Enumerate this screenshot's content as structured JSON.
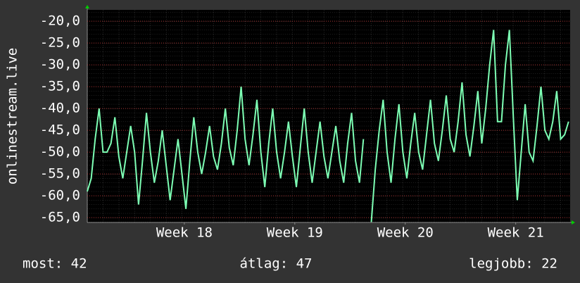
{
  "chart_data": {
    "type": "line",
    "y_label": "onlinestream.live",
    "x": [
      0,
      0.25,
      0.5,
      0.75,
      1,
      1.25,
      1.5,
      1.75,
      2,
      2.25,
      2.5,
      2.75,
      3,
      3.25,
      3.5,
      3.75,
      4,
      4.25,
      4.5,
      4.75,
      5,
      5.25,
      5.5,
      5.75,
      6,
      6.25,
      6.5,
      6.75,
      7,
      7.25,
      7.5,
      7.75,
      8,
      8.25,
      8.5,
      8.75,
      9,
      9.25,
      9.5,
      9.75,
      10,
      10.25,
      10.5,
      10.75,
      11,
      11.25,
      11.5,
      11.75,
      12,
      12.25,
      12.5,
      12.75,
      13,
      13.25,
      13.5,
      13.75,
      14,
      14.25,
      14.5,
      14.75,
      15,
      15.25,
      15.5,
      15.75,
      16,
      16.25,
      16.5,
      16.75,
      17,
      17.25,
      17.5,
      17.75,
      18,
      18.25,
      18.5,
      18.75,
      19,
      19.25,
      19.5,
      19.75,
      20,
      20.25,
      20.5,
      20.75,
      21,
      21.25,
      21.5,
      21.75,
      22,
      22.25,
      22.5,
      22.75,
      23,
      23.25,
      23.5,
      23.75,
      24,
      24.25,
      24.5,
      24.75,
      25,
      25.25,
      25.5,
      25.75,
      26,
      26.25,
      26.5,
      26.75,
      27,
      27.25,
      27.5,
      27.75,
      28,
      28.25,
      28.5,
      28.75,
      29,
      29.25,
      29.5,
      29.75,
      30,
      30.25,
      30.5
    ],
    "series": [
      {
        "color": "#7dffb4",
        "values": [
          -59,
          -56,
          -47,
          -40,
          -50,
          -50,
          -48,
          -42,
          -51,
          -56,
          -50,
          -44,
          -50,
          -62,
          -52,
          -41,
          -50,
          -57,
          -52,
          -45,
          -53,
          -61,
          -54,
          -47,
          -55,
          -63,
          -52,
          -42,
          -50,
          -55,
          -50,
          -44,
          -51,
          -54,
          -48,
          -40,
          -49,
          -53,
          -45,
          -35,
          -47,
          -53,
          -46,
          -38,
          -50,
          -58,
          -48,
          -40,
          -50,
          -56,
          -50,
          -43,
          -51,
          -58,
          -49,
          -40,
          -50,
          -57,
          -50,
          -43,
          -51,
          -56,
          -50,
          -44,
          -52,
          -57,
          -48,
          -41,
          -52,
          -57,
          -47,
          null,
          -66,
          -54,
          -45,
          -38,
          -50,
          -57,
          -47,
          -39,
          -50,
          -56,
          -48,
          -41,
          -50,
          -54,
          -46,
          -38,
          -48,
          -52,
          -45,
          -37,
          -47,
          -50,
          -43,
          -34,
          -46,
          -51,
          -44,
          -36,
          -48,
          -40,
          -30,
          -22,
          -43,
          -43,
          -30,
          -22,
          -42,
          -61,
          -50,
          -39,
          -50,
          -52,
          -44,
          -35,
          -45,
          -47,
          -43,
          -36,
          -47,
          -46,
          -43
        ]
      }
    ],
    "xlim": [
      0,
      30.6
    ],
    "xticks": [
      {
        "value": 6.15,
        "label": "Week 18"
      },
      {
        "value": 13.15,
        "label": "Week 19"
      },
      {
        "value": 20.15,
        "label": "Week 20"
      },
      {
        "value": 27.15,
        "label": "Week 21"
      }
    ],
    "ylim": [
      -66.1,
      -17.4
    ],
    "yticks": [
      {
        "value": -65,
        "label": "-65,0"
      },
      {
        "value": -60,
        "label": "-60,0"
      },
      {
        "value": -55,
        "label": "-55,0"
      },
      {
        "value": -50,
        "label": "-50,0"
      },
      {
        "value": -45,
        "label": "-45,0"
      },
      {
        "value": -40,
        "label": "-40,0"
      },
      {
        "value": -35,
        "label": "-35,0"
      },
      {
        "value": -30,
        "label": "-30,0"
      },
      {
        "value": -25,
        "label": "-25,0"
      },
      {
        "value": -20,
        "label": "-20,0"
      }
    ],
    "grid": true,
    "footer": {
      "current": "most: 42",
      "average": "átlag: 47",
      "best": "legjobb: 22"
    }
  }
}
